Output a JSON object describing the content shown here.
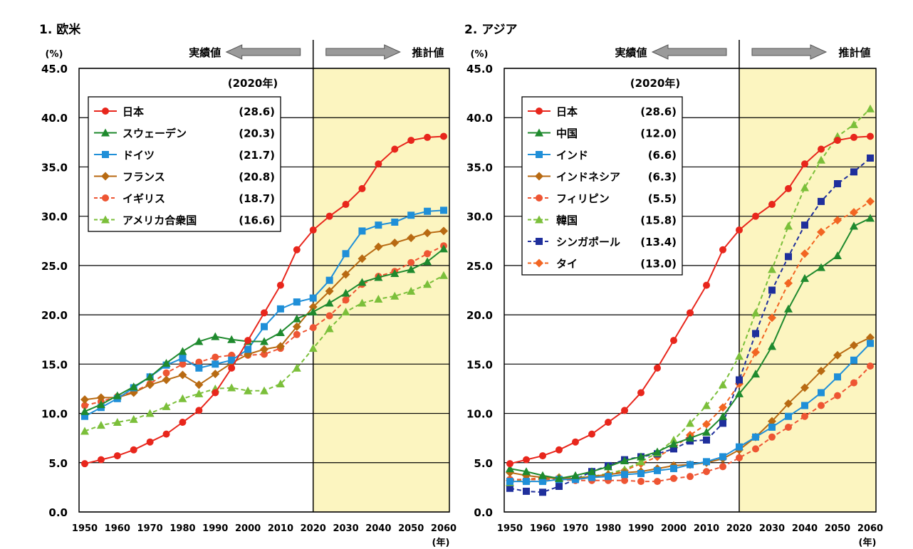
{
  "chart_data": [
    {
      "type": "line",
      "title": "1. 欧米",
      "y_unit": "(%)",
      "x_unit": "(年)",
      "actual_label": "実績値",
      "projected_label": "推計値",
      "legend_header": "(2020年)",
      "ylim": [
        0,
        45
      ],
      "y_ticks": [
        "0.0",
        "5.0",
        "10.0",
        "15.0",
        "20.0",
        "25.0",
        "30.0",
        "35.0",
        "40.0",
        "45.0"
      ],
      "x_ticks": [
        "1950",
        "1960",
        "1970",
        "1980",
        "1990",
        "2000",
        "2010",
        "2020",
        "2030",
        "2040",
        "2050",
        "2060"
      ],
      "x": [
        1950,
        1955,
        1960,
        1965,
        1970,
        1975,
        1980,
        1985,
        1990,
        1995,
        2000,
        2005,
        2010,
        2015,
        2020,
        2025,
        2030,
        2035,
        2040,
        2045,
        2050,
        2055,
        2060
      ],
      "divider_year": 2020,
      "grid": true,
      "legend_position": "top-left",
      "series": [
        {
          "name": "日本",
          "value_2020": "(28.6)",
          "color": "#e8261c",
          "marker": "circle",
          "dashed": false,
          "values": [
            4.9,
            5.3,
            5.7,
            6.3,
            7.1,
            7.9,
            9.1,
            10.3,
            12.1,
            14.6,
            17.4,
            20.2,
            23.0,
            26.6,
            28.6,
            30.0,
            31.2,
            32.8,
            35.3,
            36.8,
            37.7,
            38.0,
            38.1
          ]
        },
        {
          "name": "スウェーデン",
          "value_2020": "(20.3)",
          "color": "#1f8a2e",
          "marker": "triangle",
          "dashed": false,
          "values": [
            10.2,
            10.9,
            11.8,
            12.7,
            13.7,
            15.1,
            16.3,
            17.3,
            17.8,
            17.5,
            17.3,
            17.3,
            18.2,
            19.6,
            20.3,
            21.2,
            22.2,
            23.3,
            23.8,
            24.2,
            24.6,
            25.4,
            26.7
          ]
        },
        {
          "name": "ドイツ",
          "value_2020": "(21.7)",
          "color": "#1f8fd8",
          "marker": "square",
          "dashed": false,
          "values": [
            9.7,
            10.6,
            11.5,
            12.6,
            13.7,
            14.9,
            15.6,
            14.6,
            15.0,
            15.4,
            16.5,
            18.8,
            20.6,
            21.3,
            21.7,
            23.5,
            26.2,
            28.5,
            29.1,
            29.4,
            30.1,
            30.5,
            30.6
          ]
        },
        {
          "name": "フランス",
          "value_2020": "(20.8)",
          "color": "#b86a12",
          "marker": "diamond",
          "dashed": false,
          "values": [
            11.4,
            11.6,
            11.6,
            12.1,
            12.9,
            13.4,
            13.9,
            12.9,
            14.0,
            15.1,
            16.0,
            16.5,
            16.8,
            18.8,
            20.8,
            22.4,
            24.1,
            25.7,
            26.9,
            27.3,
            27.8,
            28.3,
            28.5
          ]
        },
        {
          "name": "イギリス",
          "value_2020": "(18.7)",
          "color": "#ee5533",
          "marker": "circle",
          "dashed": true,
          "values": [
            10.8,
            11.2,
            11.7,
            12.2,
            13.0,
            14.1,
            15.0,
            15.2,
            15.7,
            15.9,
            15.9,
            16.0,
            16.6,
            18.0,
            18.7,
            19.9,
            21.5,
            23.1,
            23.9,
            24.4,
            25.3,
            26.2,
            27.0
          ]
        },
        {
          "name": "アメリカ合衆国",
          "value_2020": "(16.6)",
          "color": "#7bbf3a",
          "marker": "triangle",
          "dashed": true,
          "values": [
            8.2,
            8.8,
            9.1,
            9.4,
            10.0,
            10.7,
            11.5,
            12.0,
            12.5,
            12.6,
            12.3,
            12.3,
            13.0,
            14.6,
            16.6,
            18.6,
            20.3,
            21.2,
            21.6,
            21.9,
            22.4,
            23.1,
            24.0
          ]
        }
      ]
    },
    {
      "type": "line",
      "title": "2. アジア",
      "y_unit": "(%)",
      "x_unit": "(年)",
      "actual_label": "実績値",
      "projected_label": "推計値",
      "legend_header": "(2020年)",
      "ylim": [
        0,
        45
      ],
      "y_ticks": [
        "0.0",
        "5.0",
        "10.0",
        "15.0",
        "20.0",
        "25.0",
        "30.0",
        "35.0",
        "40.0",
        "45.0"
      ],
      "x_ticks": [
        "1950",
        "1960",
        "1970",
        "1980",
        "1990",
        "2000",
        "2010",
        "2020",
        "2030",
        "2040",
        "2050",
        "2060"
      ],
      "x": [
        1950,
        1955,
        1960,
        1965,
        1970,
        1975,
        1980,
        1985,
        1990,
        1995,
        2000,
        2005,
        2010,
        2015,
        2020,
        2025,
        2030,
        2035,
        2040,
        2045,
        2050,
        2055,
        2060
      ],
      "divider_year": 2020,
      "grid": true,
      "legend_position": "top-left",
      "series": [
        {
          "name": "日本",
          "value_2020": "(28.6)",
          "color": "#e8261c",
          "marker": "circle",
          "dashed": false,
          "values": [
            4.9,
            5.3,
            5.7,
            6.3,
            7.1,
            7.9,
            9.1,
            10.3,
            12.1,
            14.6,
            17.4,
            20.2,
            23.0,
            26.6,
            28.6,
            30.0,
            31.2,
            32.8,
            35.3,
            36.8,
            37.7,
            38.0,
            38.1
          ]
        },
        {
          "name": "中国",
          "value_2020": "(12.0)",
          "color": "#1f8a2e",
          "marker": "triangle",
          "dashed": false,
          "values": [
            4.4,
            4.1,
            3.7,
            3.4,
            3.7,
            4.1,
            4.6,
            5.2,
            5.6,
            6.1,
            6.9,
            7.5,
            8.1,
            9.7,
            12.0,
            14.0,
            16.8,
            20.6,
            23.7,
            24.8,
            26.0,
            29.0,
            29.8
          ]
        },
        {
          "name": "インド",
          "value_2020": "(6.6)",
          "color": "#1f8fd8",
          "marker": "square",
          "dashed": false,
          "values": [
            3.1,
            3.1,
            3.1,
            3.3,
            3.3,
            3.5,
            3.6,
            3.8,
            3.9,
            4.2,
            4.4,
            4.8,
            5.1,
            5.6,
            6.6,
            7.6,
            8.6,
            9.7,
            10.8,
            12.1,
            13.7,
            15.4,
            17.1
          ]
        },
        {
          "name": "インドネシア",
          "value_2020": "(6.3)",
          "color": "#b86a12",
          "marker": "diamond",
          "dashed": false,
          "values": [
            4.0,
            3.7,
            3.5,
            3.4,
            3.4,
            3.6,
            3.8,
            4.0,
            4.1,
            4.4,
            4.7,
            4.8,
            5.0,
            5.4,
            6.3,
            7.6,
            9.2,
            11.0,
            12.6,
            14.3,
            15.9,
            16.9,
            17.7
          ]
        },
        {
          "name": "フィリピン",
          "value_2020": "(5.5)",
          "color": "#ee5533",
          "marker": "circle",
          "dashed": true,
          "values": [
            3.3,
            3.3,
            3.3,
            3.3,
            3.2,
            3.2,
            3.2,
            3.2,
            3.1,
            3.1,
            3.4,
            3.6,
            4.1,
            4.6,
            5.5,
            6.4,
            7.6,
            8.6,
            9.7,
            10.8,
            11.8,
            13.1,
            14.8
          ]
        },
        {
          "name": "韓国",
          "value_2020": "(15.8)",
          "color": "#7bbf3a",
          "marker": "triangle",
          "dashed": true,
          "values": [
            3.0,
            3.3,
            3.3,
            3.5,
            3.5,
            3.6,
            3.9,
            4.3,
            5.1,
            6.0,
            7.3,
            9.0,
            10.8,
            12.9,
            15.8,
            20.2,
            24.6,
            29.0,
            32.9,
            35.7,
            38.1,
            39.3,
            40.9
          ]
        },
        {
          "name": "シンガポール",
          "value_2020": "(13.4)",
          "color": "#1f2f9c",
          "marker": "square",
          "dashed": true,
          "values": [
            2.4,
            2.1,
            2.0,
            2.6,
            3.3,
            4.1,
            4.7,
            5.3,
            5.6,
            5.9,
            6.4,
            7.2,
            7.3,
            9.0,
            13.4,
            18.1,
            22.5,
            25.9,
            29.1,
            31.5,
            33.3,
            34.5,
            35.9
          ]
        },
        {
          "name": "タイ",
          "value_2020": "(13.0)",
          "color": "#f26522",
          "marker": "diamond",
          "dashed": true,
          "values": [
            3.2,
            3.3,
            3.5,
            3.5,
            3.3,
            3.5,
            3.8,
            4.2,
            4.9,
            5.6,
            6.5,
            7.8,
            8.9,
            10.6,
            13.0,
            16.2,
            19.7,
            23.2,
            26.2,
            28.4,
            29.6,
            30.4,
            31.5
          ]
        }
      ]
    }
  ]
}
